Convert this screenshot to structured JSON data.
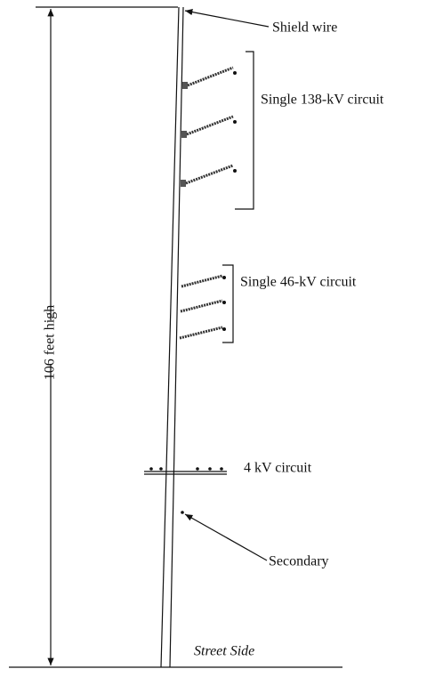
{
  "labels": {
    "shield_wire": "Shield wire",
    "circuit_138kv": "Single 138-kV circuit",
    "circuit_46kv": "Single 46-kV circuit",
    "circuit_4kv": "4 kV circuit",
    "secondary": "Secondary",
    "street_side": "Street Side",
    "height": "106 feet high"
  }
}
